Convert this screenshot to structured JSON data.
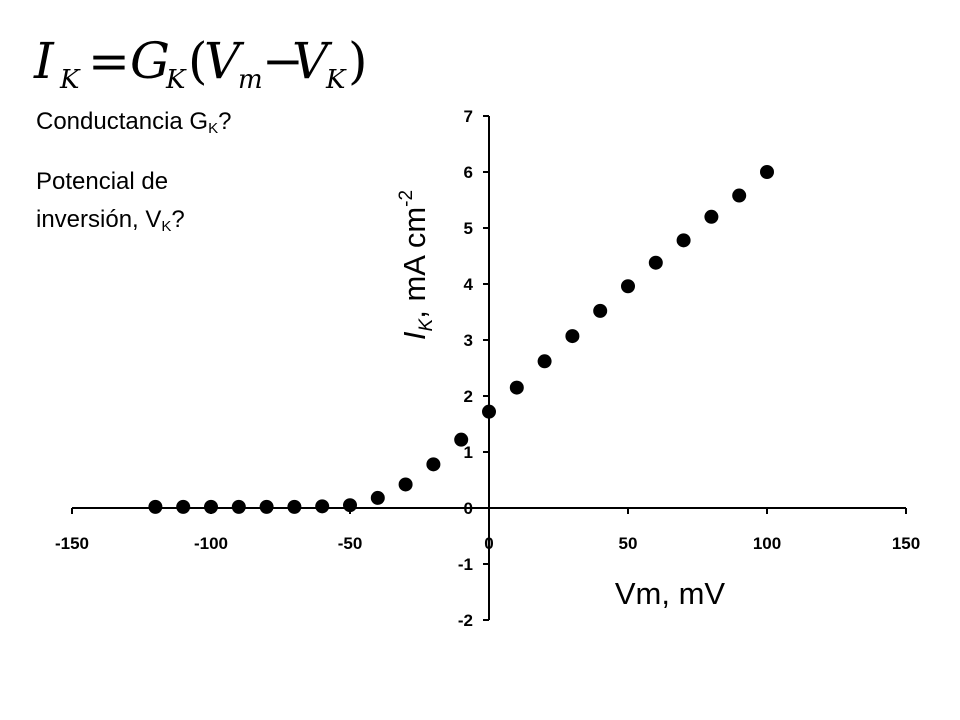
{
  "formula": {
    "lhs_symbol": "I",
    "lhs_sub": "K",
    "equals": "=",
    "g_symbol": "G",
    "g_sub": "K",
    "open_paren": "(",
    "v_symbol": "V",
    "vm_sub": "m",
    "minus": "−",
    "v2_symbol": "V",
    "vk_sub": "K",
    "close_paren": ")"
  },
  "questions": {
    "q1_text": "Conductancia G",
    "q1_sub": "K",
    "q1_end": "?",
    "q2_line1": "Potencial de",
    "q2_text": "inversión, V",
    "q2_sub": "K",
    "q2_end": "?"
  },
  "chart_data": {
    "type": "scatter",
    "x_ticks": [
      "-150",
      "-100",
      "-50",
      "0",
      "50",
      "100",
      "150"
    ],
    "y_ticks": [
      "-2",
      "-1",
      "0",
      "1",
      "2",
      "3",
      "4",
      "5",
      "6",
      "7"
    ],
    "xlim": [
      -150,
      150
    ],
    "ylim": [
      -2,
      7
    ],
    "xlabel": "Vm, mV",
    "ylabel_symbol": "I",
    "ylabel_sub": "K",
    "ylabel_rest": ", mA cm",
    "ylabel_sup": "-2",
    "grid": false,
    "marker_color": "#000000",
    "series": [
      {
        "x": [
          -120,
          -110,
          -100,
          -90,
          -80,
          -70,
          -60,
          -50,
          -40,
          -30,
          -20,
          -10,
          0,
          10,
          20,
          30,
          40,
          50,
          60,
          70,
          80,
          90,
          100
        ],
        "y": [
          0.02,
          0.02,
          0.02,
          0.02,
          0.02,
          0.02,
          0.03,
          0.05,
          0.18,
          0.42,
          0.78,
          1.22,
          1.72,
          2.15,
          2.62,
          3.07,
          3.52,
          3.96,
          4.38,
          4.78,
          5.2,
          5.58,
          6.0
        ]
      }
    ]
  }
}
